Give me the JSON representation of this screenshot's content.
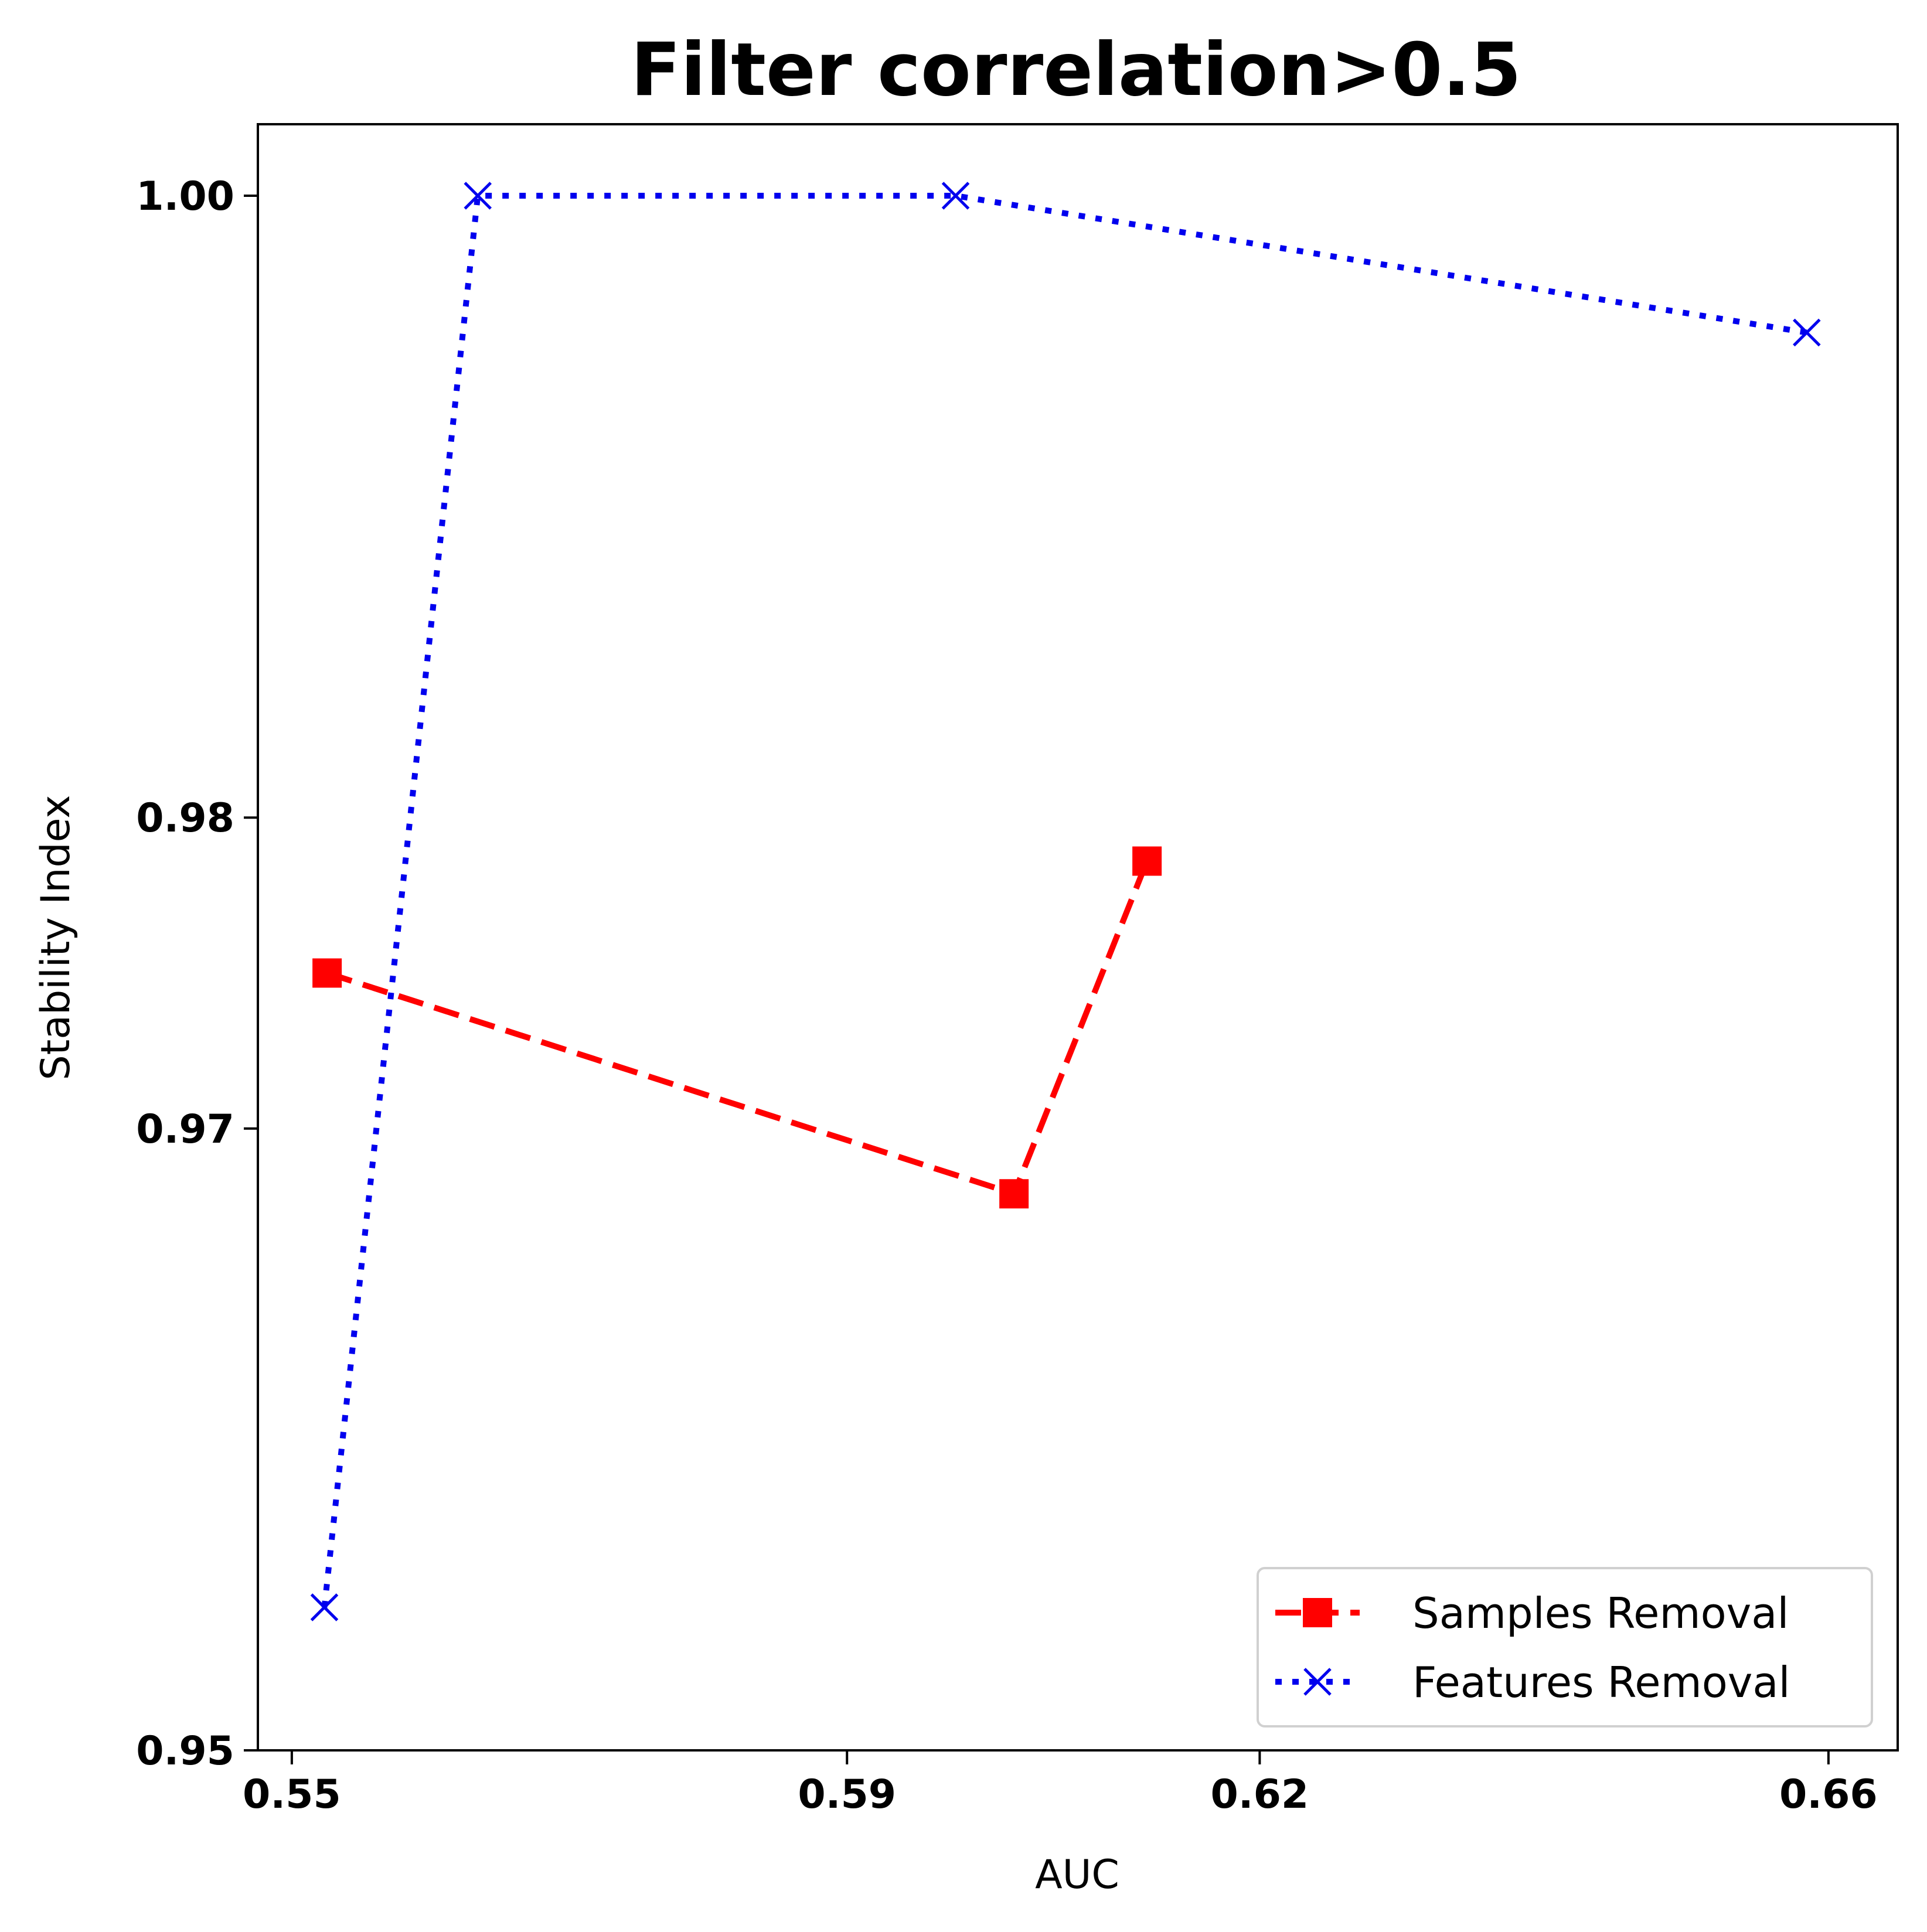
{
  "chart_data": {
    "type": "line",
    "title": "Filter correlation>0.5",
    "xlabel": "AUC",
    "ylabel": "Stability Index",
    "x_ticks": [
      {
        "value": 0.5509,
        "label": "0.55"
      },
      {
        "value": 0.5918,
        "label": "0.59"
      },
      {
        "value": 0.6222,
        "label": "0.62"
      },
      {
        "value": 0.6641,
        "label": "0.66"
      }
    ],
    "y_ticks": [
      {
        "value": 0.95,
        "label": "0.95"
      },
      {
        "value": 0.97,
        "label": "0.97"
      },
      {
        "value": 0.98,
        "label": "0.98"
      },
      {
        "value": 1.0,
        "label": "1.00"
      }
    ],
    "xlim": [
      0.5484,
      0.6692
    ],
    "ylim": [
      0.95,
      1.0023
    ],
    "grid": false,
    "legend_position": "lower right",
    "series": [
      {
        "name": "Samples Removal",
        "color": "#ff0000",
        "line_style": "dashed",
        "marker": "square",
        "x": [
          0.5535,
          0.6041,
          0.6139
        ],
        "y": [
          0.975,
          0.9679,
          0.9786
        ]
      },
      {
        "name": "Features Removal",
        "color": "#0000ee",
        "line_style": "dotted",
        "marker": "x",
        "x": [
          0.5533,
          0.5646,
          0.5998,
          0.6625
        ],
        "y": [
          0.9546,
          1.0,
          1.0,
          0.9956
        ]
      }
    ]
  }
}
